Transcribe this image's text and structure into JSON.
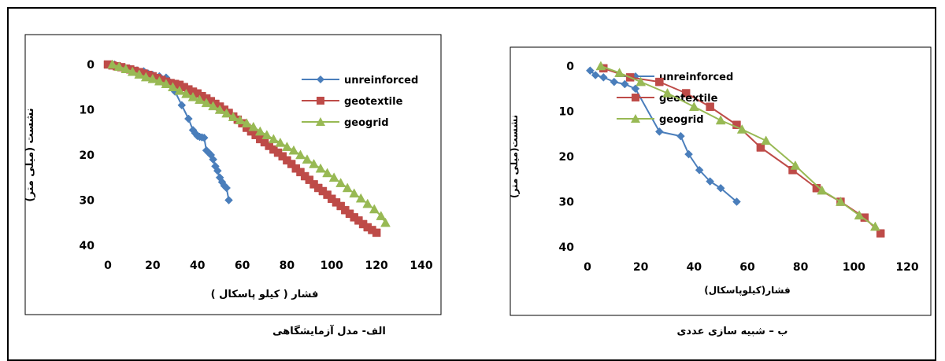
{
  "captions": {
    "left": "الف- مدل آزمایشگاهی",
    "right": "ب – شبیه سازی عددی"
  },
  "colors": {
    "unreinforced": "#4a7ebb",
    "geotextile": "#be4b48",
    "geogrid": "#98b954"
  },
  "chart_data": [
    {
      "type": "line",
      "title": "",
      "xlabel": "فشار ( کیلو پاسکال )",
      "ylabel": "نشست (میلی متر)",
      "xlim": [
        0,
        140
      ],
      "ylim": [
        0,
        40
      ],
      "y_inverted": true,
      "xticks": [
        "0",
        "20",
        "40",
        "60",
        "80",
        "100",
        "120",
        "140"
      ],
      "yticks": [
        "0",
        "10",
        "20",
        "30",
        "40"
      ],
      "legend_position": "top-right",
      "series": [
        {
          "name": "unreinforced",
          "marker": "diamond",
          "x": [
            3,
            5,
            7,
            10,
            13,
            16,
            18,
            20,
            23,
            26,
            28,
            30,
            33,
            36,
            38,
            39,
            40,
            41,
            42,
            43,
            44,
            45,
            46,
            47,
            48,
            49,
            50,
            51,
            52,
            53,
            54
          ],
          "y": [
            0,
            0.3,
            0.6,
            1,
            1.3,
            1.5,
            2,
            2.3,
            2.6,
            2.9,
            4,
            6,
            9,
            12,
            14.5,
            15.2,
            15.8,
            16,
            16.1,
            16.2,
            19,
            19.5,
            20,
            21,
            22.5,
            23.5,
            25,
            26,
            26.8,
            27.3,
            30
          ]
        },
        {
          "name": "geotextile",
          "marker": "square",
          "x": [
            0,
            2,
            4,
            6,
            8,
            10,
            12,
            14,
            16,
            18,
            20,
            22,
            24,
            26,
            28,
            30,
            32,
            34,
            36,
            38,
            40,
            42,
            44,
            46,
            48,
            50,
            52,
            54,
            56,
            58,
            60,
            62,
            64,
            66,
            68,
            70,
            72,
            74,
            76,
            78,
            80,
            82,
            84,
            86,
            88,
            90,
            92,
            94,
            96,
            98,
            100,
            102,
            104,
            106,
            108,
            110,
            112,
            114,
            116,
            118,
            120
          ],
          "y": [
            0,
            0.2,
            0.4,
            0.6,
            0.9,
            1.1,
            1.4,
            1.7,
            2,
            2.3,
            2.6,
            3,
            3.4,
            3.8,
            4.1,
            4.3,
            4.5,
            5,
            5.5,
            6,
            6.4,
            7,
            7.5,
            8.1,
            8.7,
            9.3,
            10,
            10.7,
            11.5,
            12.2,
            13,
            14,
            14.8,
            15.6,
            16.5,
            17.2,
            18,
            18.8,
            19.5,
            20.3,
            21.2,
            22,
            23,
            23.8,
            24.7,
            25.5,
            26.5,
            27.3,
            28,
            28.8,
            29.7,
            30.5,
            31.3,
            32.2,
            33,
            33.8,
            34.5,
            35.3,
            36,
            36.6,
            37.2
          ]
        },
        {
          "name": "geogrid",
          "marker": "triangle",
          "x": [
            2,
            5,
            8,
            11,
            14,
            17,
            20,
            23,
            26,
            29,
            32,
            35,
            38,
            41,
            44,
            47,
            50,
            53,
            56,
            59,
            62,
            65,
            68,
            71,
            74,
            77,
            80,
            83,
            86,
            89,
            92,
            95,
            98,
            101,
            104,
            107,
            110,
            113,
            116,
            119,
            122,
            124
          ],
          "y": [
            0,
            0.5,
            1,
            1.6,
            2.2,
            2.8,
            3.2,
            3.7,
            4.3,
            5,
            5.8,
            6.5,
            7.2,
            7.8,
            8.5,
            9.2,
            10,
            10.8,
            11.6,
            12.3,
            13,
            13.8,
            14.8,
            15.6,
            16.5,
            17.3,
            18.2,
            19,
            20,
            21,
            22,
            23,
            24,
            25,
            26.2,
            27.3,
            28.5,
            29.6,
            30.8,
            32,
            33.5,
            35
          ]
        }
      ]
    },
    {
      "type": "line",
      "title": "",
      "xlabel": "فشار(کیلوپاسکال)",
      "ylabel": "نشست(میلی متر)",
      "xlim": [
        0,
        120
      ],
      "ylim": [
        0,
        40
      ],
      "y_inverted": true,
      "xticks": [
        "0",
        "20",
        "40",
        "60",
        "80",
        "100",
        "120"
      ],
      "yticks": [
        "0",
        "10",
        "20",
        "30",
        "40"
      ],
      "legend_position": "top-right",
      "series": [
        {
          "name": "unreinforced",
          "marker": "diamond",
          "x": [
            1,
            3,
            6,
            10,
            14,
            18,
            27,
            35,
            38,
            42,
            46,
            50,
            56
          ],
          "y": [
            1,
            2,
            2.5,
            3.5,
            4,
            5,
            14.5,
            15.5,
            19.5,
            23,
            25.5,
            27,
            30
          ]
        },
        {
          "name": "geotextile",
          "marker": "square",
          "x": [
            6,
            16,
            27,
            37,
            46,
            56,
            65,
            77,
            86,
            95,
            104,
            110
          ],
          "y": [
            0.5,
            2.5,
            3.5,
            6,
            9,
            13,
            18,
            23,
            27,
            30,
            33.5,
            37
          ]
        },
        {
          "name": "geogrid",
          "marker": "triangle",
          "x": [
            5,
            12,
            20,
            30,
            40,
            50,
            58,
            67,
            78,
            88,
            95,
            102,
            108
          ],
          "y": [
            0,
            1.5,
            3.5,
            6,
            9,
            12,
            14,
            16.5,
            22,
            27.5,
            30,
            33,
            35.5
          ]
        }
      ]
    }
  ]
}
